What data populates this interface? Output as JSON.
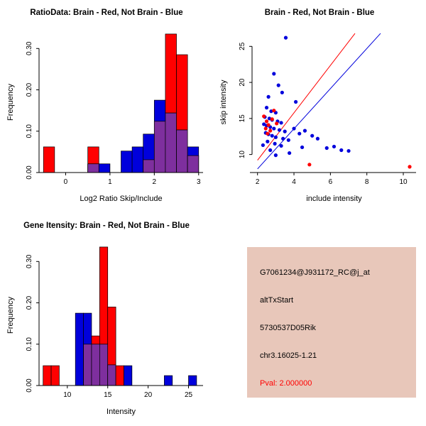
{
  "colors": {
    "red": "#FF0000",
    "blue": "#0000DC",
    "purple": "#7E2F9E",
    "axis": "#000000"
  },
  "chart_data": [
    {
      "type": "bar",
      "subtype": "histogram-overlay",
      "title": "RatioData: Brain - Red, Not Brain - Blue",
      "xlabel": "Log2 Ratio Skip/Include",
      "ylabel": "Frequency",
      "xlim": [
        -0.6,
        3.1
      ],
      "ylim": [
        0,
        0.34
      ],
      "xticks": [
        0,
        1,
        2,
        3
      ],
      "xtick_labels": [
        "0",
        "1",
        "2",
        "3"
      ],
      "yticks": [
        0.0,
        0.1,
        0.2,
        0.3
      ],
      "ytick_labels": [
        "0.00",
        "0.10",
        "0.20",
        "0.30"
      ],
      "series_legend": {
        "red": "Brain",
        "blue": "Not Brain",
        "purple": "overlap"
      },
      "bins": [
        {
          "x0": -0.5,
          "x1": -0.25,
          "red": 0.062,
          "blue": 0
        },
        {
          "x0": 0.5,
          "x1": 0.75,
          "red": 0.062,
          "blue": 0.021
        },
        {
          "x0": 0.75,
          "x1": 1.0,
          "red": 0,
          "blue": 0.021
        },
        {
          "x0": 1.25,
          "x1": 1.5,
          "red": 0,
          "blue": 0.052
        },
        {
          "x0": 1.5,
          "x1": 1.75,
          "red": 0,
          "blue": 0.062
        },
        {
          "x0": 1.75,
          "x1": 2.0,
          "red": 0.031,
          "blue": 0.093
        },
        {
          "x0": 2.0,
          "x1": 2.25,
          "red": 0.124,
          "blue": 0.175
        },
        {
          "x0": 2.25,
          "x1": 2.5,
          "red": 0.335,
          "blue": 0.144
        },
        {
          "x0": 2.5,
          "x1": 2.75,
          "red": 0.285,
          "blue": 0.103
        },
        {
          "x0": 2.75,
          "x1": 3.0,
          "red": 0.041,
          "blue": 0.062
        }
      ]
    },
    {
      "type": "scatter",
      "title": "Brain - Red, Not Brain - Blue",
      "xlabel": "include intensity",
      "ylabel": "skip intensity",
      "xlim": [
        1.7,
        10.7
      ],
      "ylim": [
        7.5,
        27.0
      ],
      "xticks": [
        2,
        4,
        6,
        8,
        10
      ],
      "xtick_labels": [
        "2",
        "4",
        "6",
        "8",
        "10"
      ],
      "yticks": [
        10,
        15,
        20,
        25
      ],
      "ytick_labels": [
        "10",
        "15",
        "20",
        "25"
      ],
      "blue_points": [
        [
          2.3,
          11.3
        ],
        [
          2.35,
          14.2
        ],
        [
          2.4,
          15.2
        ],
        [
          2.45,
          13.0
        ],
        [
          2.5,
          16.5
        ],
        [
          2.5,
          14.0
        ],
        [
          2.55,
          11.8
        ],
        [
          2.6,
          18.0
        ],
        [
          2.6,
          12.8
        ],
        [
          2.65,
          15.0
        ],
        [
          2.7,
          13.8
        ],
        [
          2.7,
          10.6
        ],
        [
          2.75,
          16.0
        ],
        [
          2.8,
          14.8
        ],
        [
          2.8,
          12.6
        ],
        [
          2.9,
          21.2
        ],
        [
          2.9,
          13.6
        ],
        [
          2.95,
          11.5
        ],
        [
          3.0,
          15.8
        ],
        [
          3.0,
          12.4
        ],
        [
          3.0,
          9.9
        ],
        [
          3.1,
          14.6
        ],
        [
          3.15,
          19.6
        ],
        [
          3.2,
          13.4
        ],
        [
          3.3,
          14.4
        ],
        [
          3.3,
          11.2
        ],
        [
          3.35,
          18.6
        ],
        [
          3.4,
          12.2
        ],
        [
          3.5,
          13.2
        ],
        [
          3.55,
          26.2
        ],
        [
          3.7,
          12.0
        ],
        [
          3.75,
          10.2
        ],
        [
          4.0,
          13.6
        ],
        [
          4.1,
          17.3
        ],
        [
          4.3,
          12.9
        ],
        [
          4.45,
          11.0
        ],
        [
          4.6,
          13.3
        ],
        [
          5.0,
          12.6
        ],
        [
          5.3,
          12.2
        ],
        [
          5.8,
          10.9
        ],
        [
          6.2,
          11.1
        ],
        [
          6.6,
          10.6
        ],
        [
          7.0,
          10.5
        ]
      ],
      "red_points": [
        [
          2.35,
          15.3
        ],
        [
          2.45,
          13.6
        ],
        [
          2.5,
          14.6
        ],
        [
          2.55,
          12.9
        ],
        [
          2.6,
          14.1
        ],
        [
          2.7,
          13.3
        ],
        [
          2.8,
          14.9
        ],
        [
          2.9,
          16.1
        ],
        [
          3.05,
          14.3
        ],
        [
          4.85,
          8.6
        ],
        [
          10.35,
          8.3
        ]
      ],
      "lines": [
        {
          "color": "red",
          "from": [
            2.0,
            9.2
          ],
          "to": [
            7.35,
            26.8
          ]
        },
        {
          "color": "blue",
          "from": [
            2.0,
            8.0
          ],
          "to": [
            8.75,
            26.8
          ]
        }
      ]
    },
    {
      "type": "bar",
      "subtype": "histogram-overlay",
      "title": "Gene Itensity: Brain - Red, Not Brain - Blue",
      "xlabel": "Intensity",
      "ylabel": "Frequency",
      "xlim": [
        6.5,
        26.8
      ],
      "ylim": [
        0,
        0.34
      ],
      "xticks": [
        10,
        15,
        20,
        25
      ],
      "xtick_labels": [
        "10",
        "15",
        "20",
        "25"
      ],
      "yticks": [
        0.0,
        0.1,
        0.2,
        0.3
      ],
      "ytick_labels": [
        "0.00",
        "0.10",
        "0.20",
        "0.30"
      ],
      "series_legend": {
        "red": "Brain",
        "blue": "Not Brain",
        "purple": "overlap"
      },
      "bins": [
        {
          "x0": 7,
          "x1": 8,
          "red": 0.048,
          "blue": 0
        },
        {
          "x0": 8,
          "x1": 9,
          "red": 0.048,
          "blue": 0
        },
        {
          "x0": 11,
          "x1": 12,
          "red": 0,
          "blue": 0.175
        },
        {
          "x0": 12,
          "x1": 13,
          "red": 0.1,
          "blue": 0.175
        },
        {
          "x0": 13,
          "x1": 14,
          "red": 0.12,
          "blue": 0.1
        },
        {
          "x0": 14,
          "x1": 15,
          "red": 0.335,
          "blue": 0.1
        },
        {
          "x0": 15,
          "x1": 16,
          "red": 0.19,
          "blue": 0.05
        },
        {
          "x0": 16,
          "x1": 17,
          "red": 0.048,
          "blue": 0
        },
        {
          "x0": 17,
          "x1": 18,
          "red": 0,
          "blue": 0.048
        },
        {
          "x0": 22,
          "x1": 23,
          "red": 0,
          "blue": 0.024
        },
        {
          "x0": 25,
          "x1": 26,
          "red": 0,
          "blue": 0.024
        }
      ]
    }
  ],
  "info_panel": {
    "bg": "#E8C7BA",
    "lines": [
      {
        "text": "G7061234@J931172_RC@j_at",
        "color": "#000000"
      },
      {
        "text": "altTxStart",
        "color": "#000000"
      },
      {
        "text": "5730537D05Rik",
        "color": "#000000"
      },
      {
        "text": "chr3.16025-1.21",
        "color": "#000000"
      },
      {
        "text": "Pval: 2.000000",
        "color": "#FF0000"
      }
    ]
  }
}
